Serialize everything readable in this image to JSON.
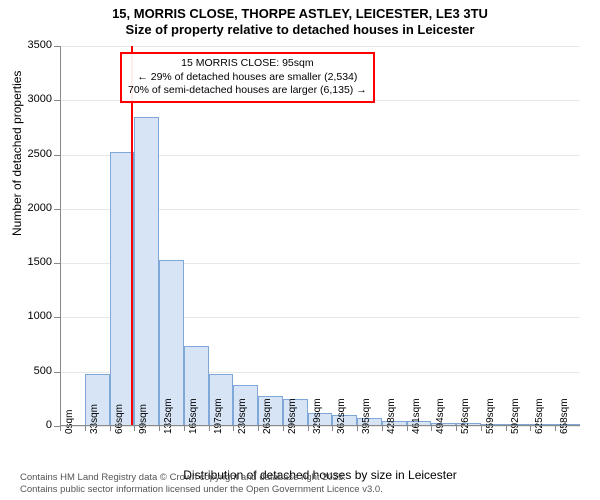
{
  "title_main": "15, MORRIS CLOSE, THORPE ASTLEY, LEICESTER, LE3 3TU",
  "title_sub": "Size of property relative to detached houses in Leicester",
  "chart": {
    "type": "histogram",
    "yaxis_title": "Number of detached properties",
    "xaxis_title": "Distribution of detached houses by size in Leicester",
    "ylim": [
      0,
      3500
    ],
    "ytick_step": 500,
    "yticks": [
      0,
      500,
      1000,
      1500,
      2000,
      2500,
      3000,
      3500
    ],
    "xticks": [
      "0sqm",
      "33sqm",
      "66sqm",
      "99sqm",
      "132sqm",
      "165sqm",
      "197sqm",
      "230sqm",
      "263sqm",
      "296sqm",
      "329sqm",
      "362sqm",
      "395sqm",
      "428sqm",
      "461sqm",
      "494sqm",
      "526sqm",
      "559sqm",
      "592sqm",
      "625sqm",
      "658sqm"
    ],
    "values": [
      0,
      480,
      2520,
      2850,
      1530,
      740,
      480,
      380,
      280,
      250,
      120,
      100,
      70,
      50,
      50,
      30,
      25,
      20,
      15,
      10,
      8
    ],
    "bar_fill": "#d6e4f5",
    "bar_stroke": "#7fa8d9",
    "grid_color": "#e8e8e8",
    "axis_color": "#888888",
    "background_color": "#ffffff",
    "marker": {
      "position_index": 2.88,
      "color": "#ff0000"
    },
    "annotation": {
      "border_color": "#ff0000",
      "line1": "15 MORRIS CLOSE: 95sqm",
      "line2": "← 29% of detached houses are smaller (2,534)",
      "line3": "70% of semi-detached houses are larger (6,135) →"
    }
  },
  "footer": {
    "line1": "Contains HM Land Registry data © Crown copyright and database right 2025.",
    "line2": "Contains public sector information licensed under the Open Government Licence v3.0."
  }
}
